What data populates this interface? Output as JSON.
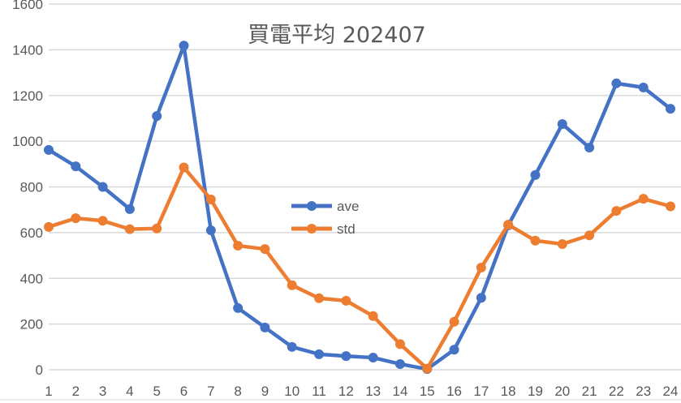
{
  "chart_data": {
    "type": "line",
    "title": "買電平均 202407",
    "xlabel": "",
    "ylabel": "",
    "categories": [
      "1",
      "2",
      "3",
      "4",
      "5",
      "6",
      "7",
      "8",
      "9",
      "10",
      "11",
      "12",
      "13",
      "14",
      "15",
      "16",
      "17",
      "18",
      "19",
      "20",
      "21",
      "22",
      "23",
      "24"
    ],
    "series": [
      {
        "name": "ave",
        "color": "#4472C4",
        "values": [
          962,
          890,
          800,
          703,
          1110,
          1418,
          610,
          270,
          185,
          100,
          68,
          60,
          53,
          25,
          3,
          88,
          315,
          632,
          852,
          1075,
          972,
          1253,
          1235,
          1142
        ]
      },
      {
        "name": "std",
        "color": "#ED7D31",
        "values": [
          625,
          663,
          652,
          615,
          618,
          885,
          745,
          543,
          528,
          370,
          313,
          302,
          235,
          112,
          5,
          210,
          447,
          635,
          565,
          550,
          588,
          695,
          748,
          715
        ]
      }
    ],
    "ylim": [
      0,
      1600
    ],
    "yticks": [
      0,
      200,
      400,
      600,
      800,
      1000,
      1200,
      1400,
      1600
    ],
    "grid": true,
    "legend_position": "inside-center-left",
    "markers": true
  },
  "title": "買電平均 202407",
  "legend": [
    {
      "label": "ave",
      "color": "#4472C4"
    },
    {
      "label": "std",
      "color": "#ED7D31"
    }
  ]
}
